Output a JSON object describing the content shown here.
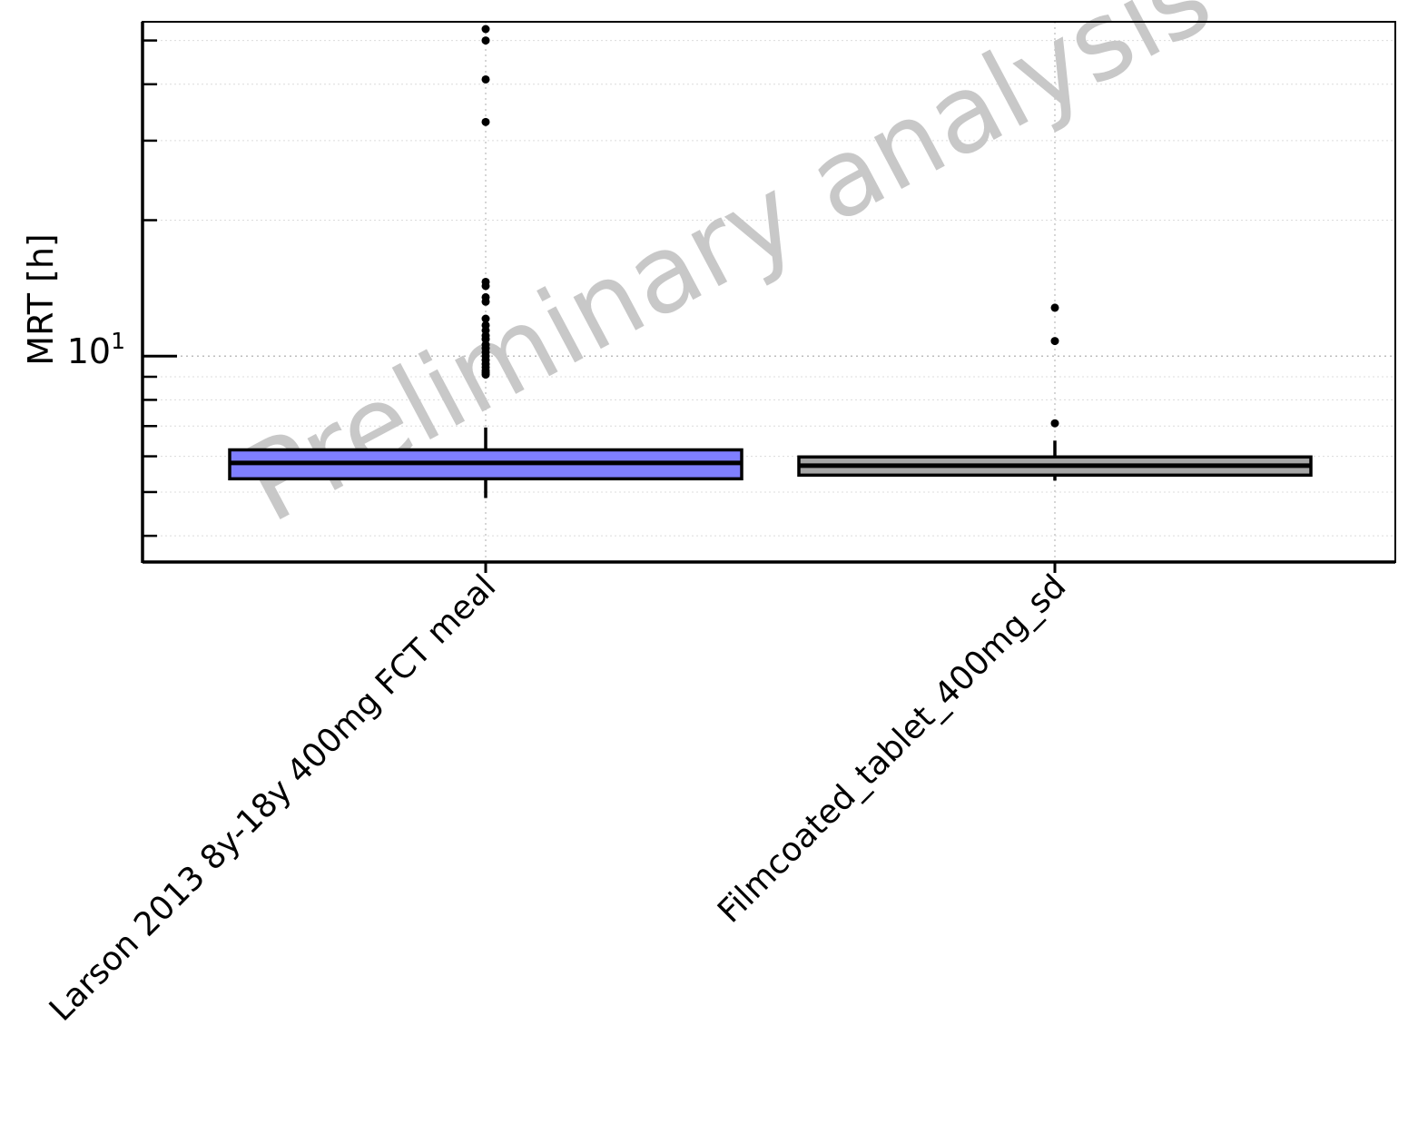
{
  "chart_data": {
    "type": "box",
    "ylabel": "MRT [h]",
    "y_scale": "log",
    "ylim": [
      3.5,
      55
    ],
    "major_ticks": [
      {
        "base": "10",
        "exp": "1"
      }
    ],
    "grid": true,
    "watermark": "Preliminary analysis",
    "categories": [
      "Larson 2013 8y-18y 400mg FCT meal",
      "Filmcoated_tablet_400mg_sd"
    ],
    "boxes": [
      {
        "category": "Larson 2013 8y-18y 400mg FCT meal",
        "color": "#7f7fff",
        "q1": 5.35,
        "median": 5.8,
        "q3": 6.2,
        "whisker_low": 4.85,
        "whisker_high": 6.95,
        "outliers": [
          9.1,
          9.2,
          9.3,
          9.45,
          9.6,
          9.8,
          10.0,
          10.2,
          10.4,
          10.6,
          10.9,
          11.1,
          11.4,
          11.7,
          12.1,
          13.2,
          13.5,
          14.3,
          14.6,
          33.0,
          41.0,
          50.0,
          53.0
        ]
      },
      {
        "category": "Filmcoated_tablet_400mg_sd",
        "color": "#a6a6a6",
        "q1": 5.45,
        "median": 5.72,
        "q3": 5.98,
        "whisker_low": 5.3,
        "whisker_high": 6.5,
        "outliers": [
          7.1,
          10.8,
          12.8
        ]
      }
    ]
  }
}
